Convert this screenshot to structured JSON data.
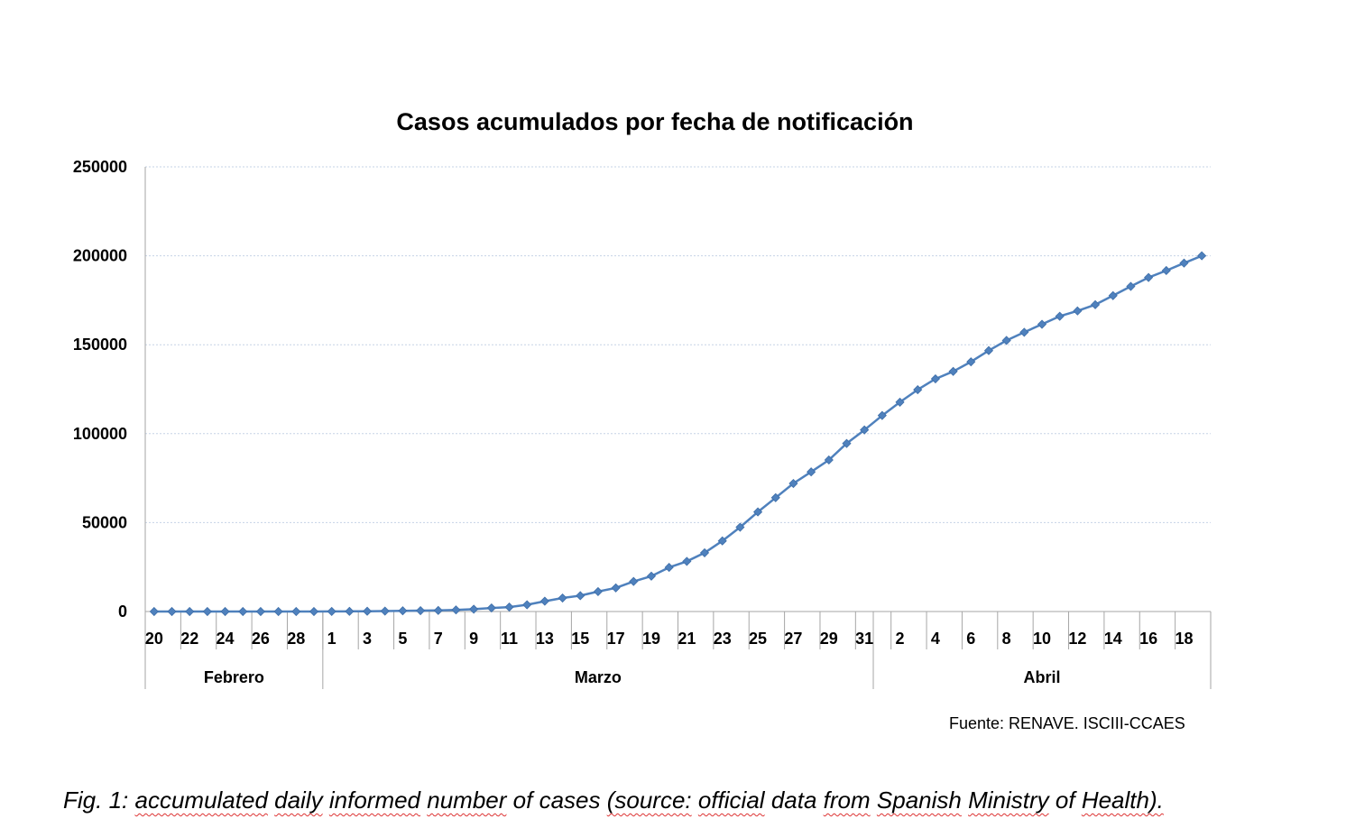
{
  "chart_data": {
    "type": "line",
    "title": "Casos acumulados por fecha de notificación",
    "xlabel": "",
    "ylabel": "",
    "ylim": [
      0,
      250000
    ],
    "yticks": [
      "0",
      "50000",
      "100000",
      "150000",
      "200000",
      "250000"
    ],
    "grid": true,
    "legend": "none",
    "line_color": "#4f81bd",
    "marker": "diamond",
    "x_tick_labels": [
      "20",
      "22",
      "24",
      "26",
      "28",
      "1",
      "3",
      "5",
      "7",
      "9",
      "11",
      "13",
      "15",
      "17",
      "19",
      "21",
      "23",
      "25",
      "27",
      "29",
      "31",
      "2",
      "4",
      "6",
      "8",
      "10",
      "12",
      "14",
      "16",
      "18"
    ],
    "months": [
      {
        "name": "Febrero",
        "start": "2020-02-20",
        "end": "2020-02-29"
      },
      {
        "name": "Marzo",
        "start": "2020-03-01",
        "end": "2020-03-31"
      },
      {
        "name": "Abril",
        "start": "2020-04-01",
        "end": "2020-04-19"
      }
    ],
    "series": [
      {
        "x": [
          "2020-02-20",
          "2020-02-21",
          "2020-02-22",
          "2020-02-23",
          "2020-02-24",
          "2020-02-25",
          "2020-02-26",
          "2020-02-27",
          "2020-02-28",
          "2020-02-29",
          "2020-03-01",
          "2020-03-02",
          "2020-03-03",
          "2020-03-04",
          "2020-03-05",
          "2020-03-06",
          "2020-03-07",
          "2020-03-08",
          "2020-03-09",
          "2020-03-10",
          "2020-03-11",
          "2020-03-12",
          "2020-03-13",
          "2020-03-14",
          "2020-03-15",
          "2020-03-16",
          "2020-03-17",
          "2020-03-18",
          "2020-03-19",
          "2020-03-20",
          "2020-03-21",
          "2020-03-22",
          "2020-03-23",
          "2020-03-24",
          "2020-03-25",
          "2020-03-26",
          "2020-03-27",
          "2020-03-28",
          "2020-03-29",
          "2020-03-30",
          "2020-03-31",
          "2020-04-01",
          "2020-04-02",
          "2020-04-03",
          "2020-04-04",
          "2020-04-05",
          "2020-04-06",
          "2020-04-07",
          "2020-04-08",
          "2020-04-09",
          "2020-04-10",
          "2020-04-11",
          "2020-04-12",
          "2020-04-13",
          "2020-04-14",
          "2020-04-15",
          "2020-04-16",
          "2020-04-17",
          "2020-04-18",
          "2020-04-19"
        ],
        "values": [
          0,
          0,
          0,
          0,
          0,
          0,
          0,
          0,
          0,
          0,
          50,
          80,
          150,
          250,
          400,
          500,
          600,
          900,
          1300,
          2000,
          2500,
          3800,
          5800,
          7600,
          8900,
          11200,
          13300,
          16900,
          19900,
          24800,
          28200,
          33000,
          39700,
          47400,
          56000,
          64000,
          72000,
          78500,
          85200,
          94500,
          102100,
          110200,
          117700,
          124700,
          130800,
          135000,
          140400,
          146700,
          152400,
          157000,
          161500,
          166000,
          169000,
          172500,
          177600,
          182800,
          187800,
          191700,
          195900,
          200000
        ]
      }
    ]
  },
  "source": "Fuente: RENAVE. ISCIII-CCAES",
  "caption": {
    "prefix": "Fig. 1: ",
    "words": [
      {
        "text": "accumulated",
        "flagged": true
      },
      {
        "text": "daily",
        "flagged": true
      },
      {
        "text": "informed",
        "flagged": true
      },
      {
        "text": "number",
        "flagged": true
      },
      {
        "text": "of",
        "flagged": false
      },
      {
        "text": "cases",
        "flagged": false
      },
      {
        "text": "(source:",
        "flagged": true
      },
      {
        "text": "official",
        "flagged": true
      },
      {
        "text": "data",
        "flagged": false
      },
      {
        "text": "from",
        "flagged": true
      },
      {
        "text": "Spanish",
        "flagged": true
      },
      {
        "text": "Ministry",
        "flagged": true
      },
      {
        "text": "of",
        "flagged": false
      },
      {
        "text": "Health).",
        "flagged": true
      }
    ]
  }
}
